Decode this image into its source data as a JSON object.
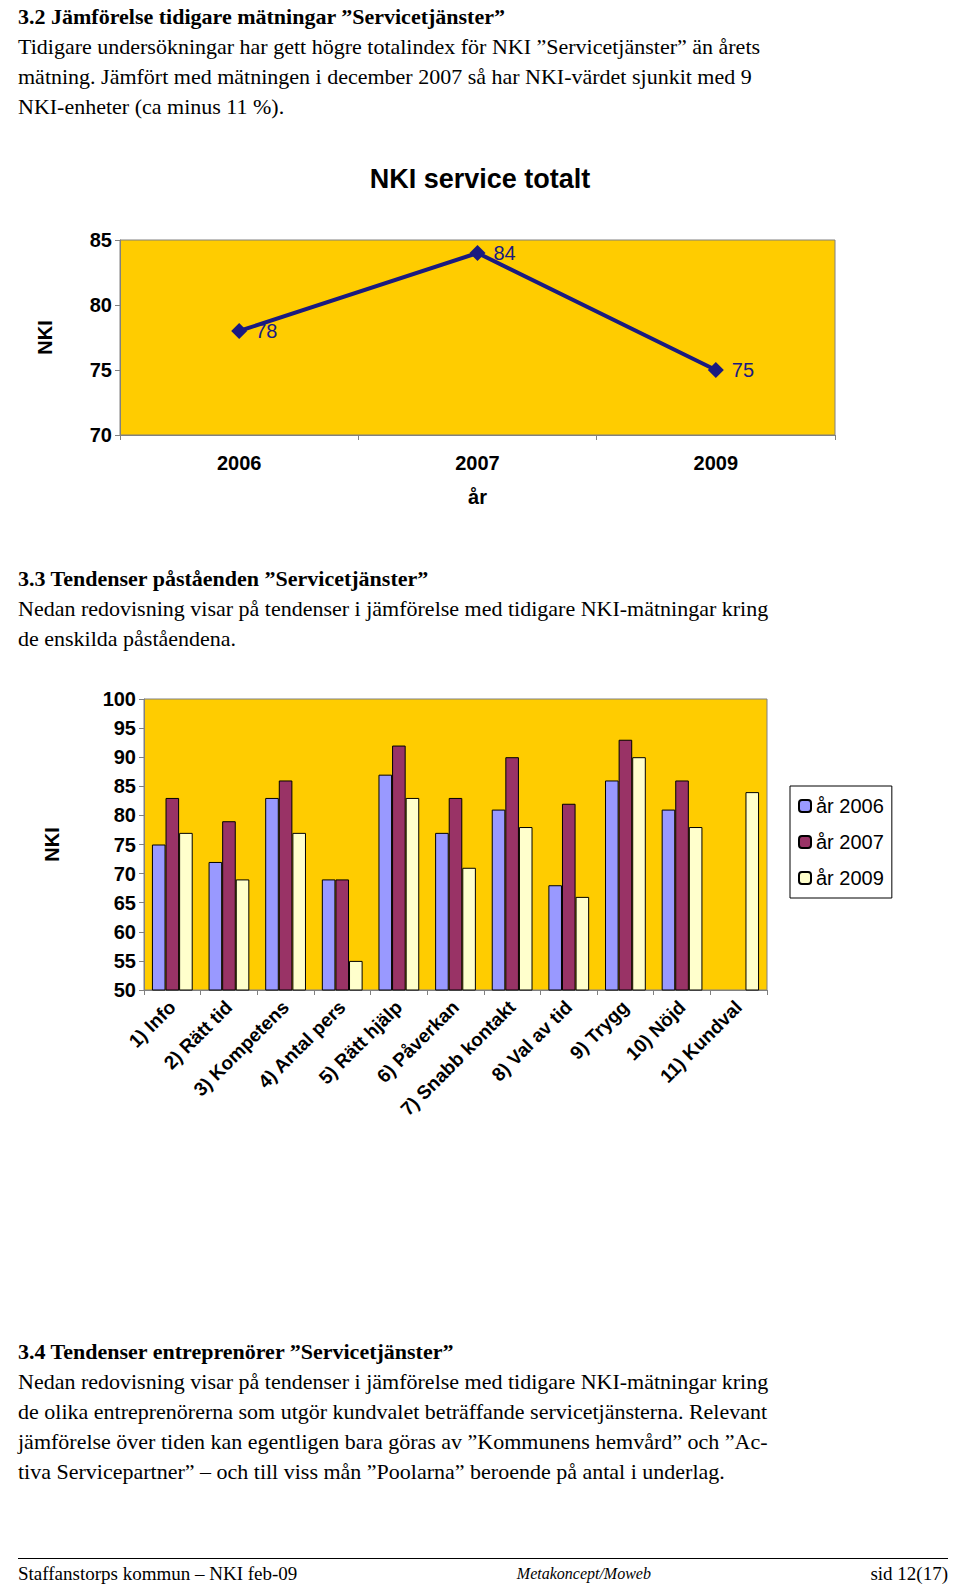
{
  "page": {
    "sections": [
      {
        "heading": "3.2 Jämförelse tidigare mätningar ”Servicetjänster”",
        "lines": [
          "Tidigare undersökningar har gett högre totalindex för NKI ”Servicetjänster” än årets",
          "mätning. Jämfört med mätningen i december 2007 så har NKI-värdet sjunkit med 9",
          "NKI-enheter (ca minus 11 %)."
        ]
      },
      {
        "heading": "3.3 Tendenser påståenden ”Servicetjänster”",
        "lines": [
          "Nedan redovisning visar på tendenser i jämförelse med tidigare NKI-mätningar kring",
          "de enskilda påståendena."
        ]
      },
      {
        "heading": "3.4 Tendenser entreprenörer ”Servicetjänster”",
        "lines": [
          "Nedan redovisning visar på tendenser i jämförelse med tidigare NKI-mätningar kring",
          "de olika entreprenörerna som utgör kundvalet beträffande servicetjänsterna. Relevant",
          "jämförelse över tiden kan egentligen bara göras av ”Kommunens hemvård” och ”Ac-",
          "tiva Servicepartner” – och till viss mån ”Poolarna” beroende på antal i underlag."
        ]
      }
    ],
    "footer": {
      "left": "Staffanstorps kommun – NKI feb-09",
      "center": "Metakoncept/Moweb",
      "right": "sid 12(17)"
    }
  },
  "chart_data": [
    {
      "type": "line",
      "title": "NKI service totalt",
      "x_label": "år",
      "y_label": "NKI",
      "categories": [
        "2006",
        "2007",
        "2009"
      ],
      "values": [
        78,
        84,
        75
      ],
      "color": "#1a1a80",
      "marker": "diamond",
      "ylim": [
        70,
        85
      ],
      "yticks": [
        70,
        75,
        80,
        85
      ],
      "grid": false,
      "data_labels": true
    },
    {
      "type": "bar",
      "y_label": "NKI",
      "categories": [
        "1) Info",
        "2) Rätt tid",
        "3) Kompetens",
        "4) Antal pers",
        "5) Rätt hjälp",
        "6) Påverkan",
        "7) Snabb kontakt",
        "8) Val av tid",
        "9) Trygg",
        "10) Nöjd",
        "11) Kundval"
      ],
      "series": [
        {
          "name": "år 2006",
          "color": "#9999ff",
          "values": [
            75,
            72,
            83,
            69,
            87,
            77,
            81,
            68,
            86,
            81,
            null
          ]
        },
        {
          "name": "år 2007",
          "color": "#993366",
          "values": [
            83,
            79,
            86,
            69,
            92,
            83,
            90,
            82,
            93,
            86,
            null
          ]
        },
        {
          "name": "år 2009",
          "color": "#ffffcc",
          "values": [
            77,
            69,
            77,
            55,
            83,
            71,
            78,
            66,
            90,
            78,
            84
          ]
        }
      ],
      "ylim": [
        50,
        100
      ],
      "yticks": [
        50,
        55,
        60,
        65,
        70,
        75,
        80,
        85,
        90,
        95,
        100
      ],
      "grid": false,
      "legend": "right"
    }
  ]
}
